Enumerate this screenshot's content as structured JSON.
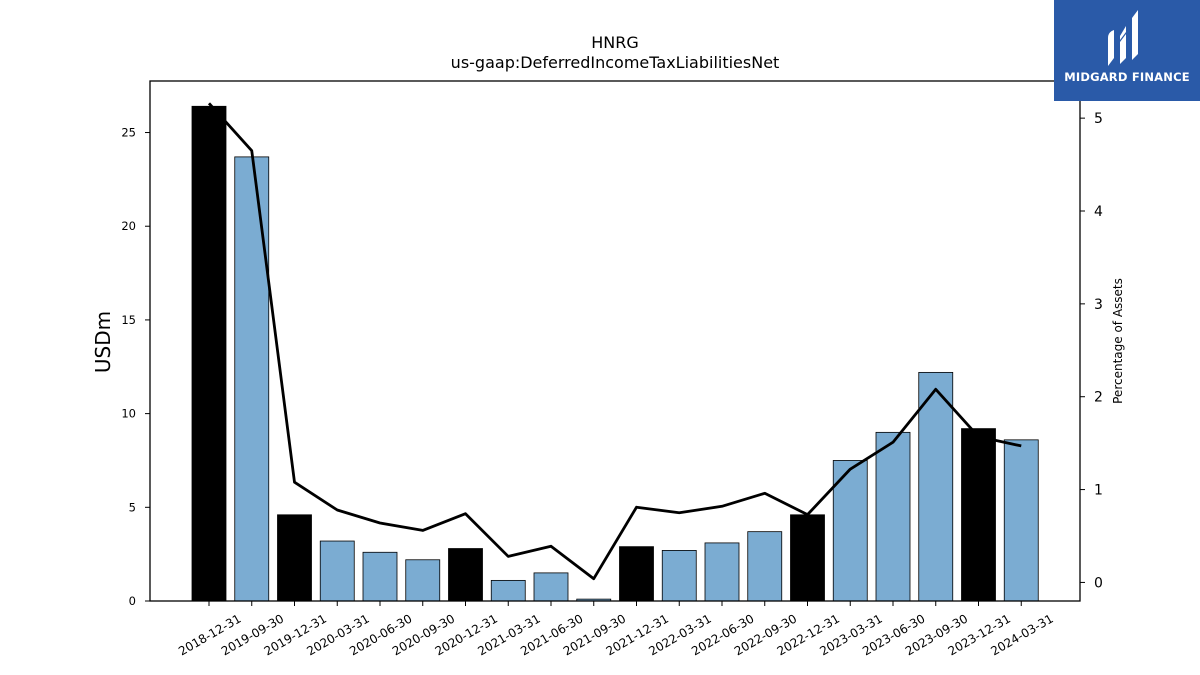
{
  "chart_data": {
    "type": "bar",
    "title": "HNRG",
    "subtitle": "us-gaap:DeferredIncomeTaxLiabilitiesNet",
    "ylabel": "USDm",
    "y2label": "Percentage of Assets",
    "categories": [
      "2018-12-31",
      "2019-09-30",
      "2019-12-31",
      "2020-03-31",
      "2020-06-30",
      "2020-09-30",
      "2020-12-31",
      "2021-03-31",
      "2021-06-30",
      "2021-09-30",
      "2021-12-31",
      "2022-03-31",
      "2022-06-30",
      "2022-09-30",
      "2022-12-31",
      "2023-03-31",
      "2023-06-30",
      "2023-09-30",
      "2023-12-31",
      "2024-03-31"
    ],
    "series": [
      {
        "values": [
          26.4,
          23.7,
          4.6,
          3.2,
          2.6,
          2.2,
          2.8,
          1.1,
          1.5,
          0.1,
          2.9,
          2.7,
          3.1,
          3.7,
          4.6,
          7.5,
          9.0,
          12.2,
          9.2,
          8.6
        ]
      },
      {
        "values": [
          5.16,
          4.65,
          1.08,
          0.78,
          0.64,
          0.56,
          0.74,
          0.28,
          0.39,
          0.04,
          0.81,
          0.75,
          0.82,
          0.96,
          0.73,
          1.22,
          1.51,
          2.08,
          1.57,
          1.47
        ]
      }
    ],
    "annual_flags": [
      true,
      false,
      true,
      false,
      false,
      false,
      true,
      false,
      false,
      false,
      true,
      false,
      false,
      false,
      true,
      false,
      false,
      false,
      true,
      false
    ],
    "ylim": [
      0,
      27.75
    ],
    "yticks": [
      0,
      5,
      10,
      15,
      20,
      25
    ],
    "y2lim": [
      -0.2,
      5.4
    ],
    "y2ticks": [
      0,
      1,
      2,
      3,
      4,
      5
    ],
    "colors": {
      "annual_bar": "#000000",
      "quarter_bar": "#7bacd2",
      "line": "#000000",
      "logo_bg": "#2a5aa8"
    }
  },
  "logo": {
    "text": "MIDGARD FINANCE",
    "icon": "midgard-logo-icon"
  }
}
